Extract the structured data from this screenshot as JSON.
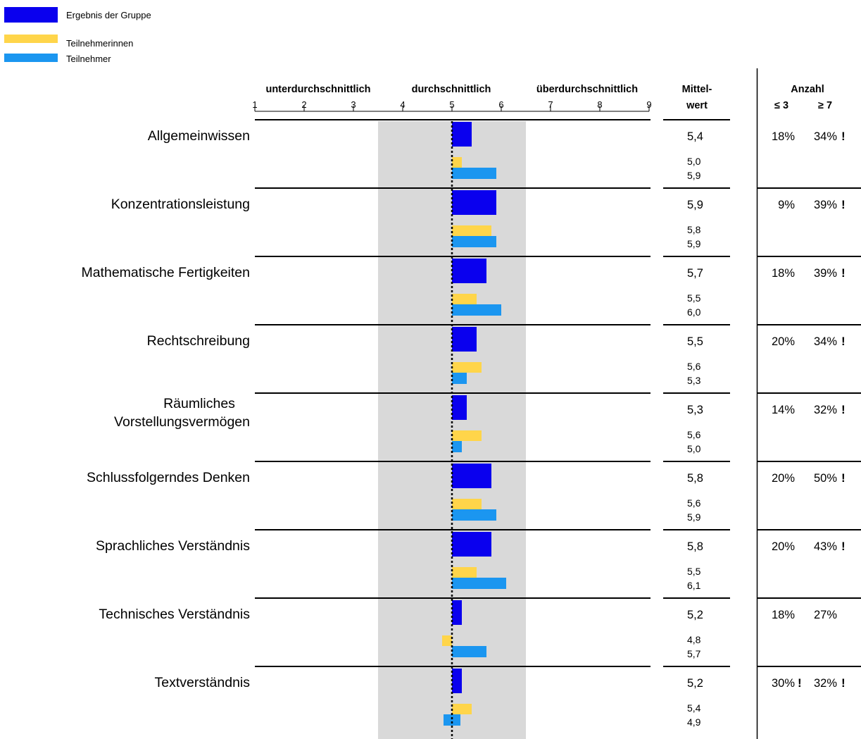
{
  "legend": [
    {
      "label": "Ergebnis der Gruppe",
      "color": "#0a00ee"
    },
    {
      "label": "Teilnehmerinnen",
      "color": "#ffd54a"
    },
    {
      "label": "Teilnehmer",
      "color": "#1b96f0"
    }
  ],
  "header": {
    "zones": [
      "unterdurchschnittlich",
      "durchschnittlich",
      "überdurchschnittlich"
    ],
    "mean_line1": "Mittel-",
    "mean_line2": "wert",
    "count_title": "Anzahl",
    "count_low_label": "≤ 3",
    "count_high_label": "≥ 7"
  },
  "chart_data": {
    "type": "bar",
    "orientation": "horizontal",
    "scale": {
      "min": 1,
      "max": 9,
      "ticks": [
        1,
        2,
        3,
        4,
        5,
        6,
        7,
        8,
        9
      ]
    },
    "reference_value": 5,
    "average_band": [
      3.5,
      6.5
    ],
    "categories": [
      "Allgemeinwissen",
      "Konzentrationsleistung",
      "Mathematische Fertigkeiten",
      "Rechtschreibung",
      "Räumliches Vorstellungsvermögen",
      "Schlussfolgerndes Denken",
      "Sprachliches Verständnis",
      "Technisches Verständnis",
      "Textverständnis"
    ],
    "category_display": [
      [
        "Allgemeinwissen"
      ],
      [
        "Konzentrationsleistung"
      ],
      [
        "Mathematische Fertigkeiten"
      ],
      [
        "Rechtschreibung"
      ],
      [
        "Räumliches",
        "Vorstellungsvermögen"
      ],
      [
        "Schlussfolgerndes Denken"
      ],
      [
        "Sprachliches Verständnis"
      ],
      [
        "Technisches Verständnis"
      ],
      [
        "Textverständnis"
      ]
    ],
    "series": [
      {
        "name": "Ergebnis der Gruppe",
        "color": "#0a00ee",
        "values": [
          5.4,
          5.9,
          5.7,
          5.5,
          5.3,
          5.8,
          5.8,
          5.2,
          5.2
        ],
        "labels": [
          "5,4",
          "5,9",
          "5,7",
          "5,5",
          "5,3",
          "5,8",
          "5,8",
          "5,2",
          "5,2"
        ]
      },
      {
        "name": "Teilnehmerinnen",
        "color": "#ffd54a",
        "values": [
          5.0,
          5.8,
          5.5,
          5.6,
          5.6,
          5.6,
          5.5,
          4.8,
          5.4
        ],
        "labels": [
          "5,0",
          "5,8",
          "5,5",
          "5,6",
          "5,6",
          "5,6",
          "5,5",
          "4,8",
          "5,4"
        ]
      },
      {
        "name": "Teilnehmer",
        "color": "#1b96f0",
        "values": [
          5.9,
          5.9,
          6.0,
          5.3,
          5.0,
          5.9,
          6.1,
          5.7,
          4.9
        ],
        "labels": [
          "5,9",
          "5,9",
          "6,0",
          "5,3",
          "5,0",
          "5,9",
          "6,1",
          "5,7",
          "4,9"
        ]
      }
    ],
    "count_low": [
      "18%",
      "9%",
      "18%",
      "20%",
      "14%",
      "20%",
      "20%",
      "18%",
      "30%"
    ],
    "count_low_flag": [
      false,
      false,
      false,
      false,
      false,
      false,
      false,
      false,
      true
    ],
    "count_high": [
      "34%",
      "39%",
      "39%",
      "34%",
      "32%",
      "50%",
      "43%",
      "27%",
      "32%"
    ],
    "count_high_flag": [
      true,
      true,
      true,
      true,
      true,
      true,
      true,
      false,
      true
    ],
    "flag_symbol": "!",
    "grid": false,
    "legend_position": "top-left"
  }
}
